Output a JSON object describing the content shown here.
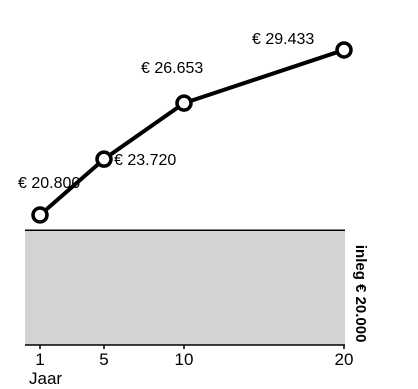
{
  "chart_data": {
    "type": "line",
    "x": [
      1,
      5,
      10,
      20
    ],
    "xlim": [
      0,
      20
    ],
    "xticks": [
      "1",
      "5",
      "10",
      "20"
    ],
    "xlabel": "Jaar",
    "ylabel": "",
    "ylim": [
      14000,
      31000
    ],
    "grid": false,
    "series": [
      {
        "values": [
          20800,
          23720,
          26653,
          29433
        ],
        "labels": [
          "€ 20.800",
          "€ 23.720",
          "€ 26.653",
          "€ 29.433"
        ]
      }
    ],
    "baseline": {
      "value": 20000,
      "label": "inleg € 20.000"
    },
    "colors": {
      "line": "#000000",
      "marker_fill": "#ffffff",
      "area_fill": "#d3d3d3",
      "axis": "#000000"
    }
  }
}
